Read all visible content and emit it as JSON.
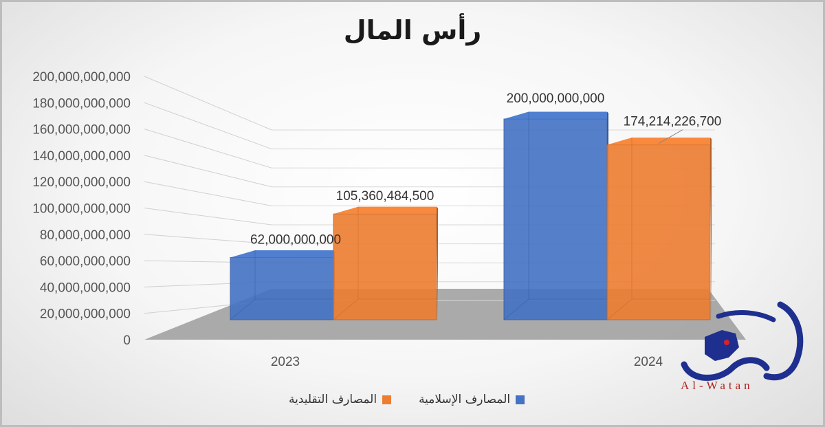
{
  "chart_data": {
    "type": "bar",
    "title": "رأس المال",
    "categories": [
      "2023",
      "2024"
    ],
    "series": [
      {
        "name": "المصارف الإسلامية",
        "color": "#4472c4",
        "values": [
          62000000000,
          200000000000
        ],
        "labels": [
          "62,000,000,000",
          "200,000,000,000"
        ]
      },
      {
        "name": "المصارف التقليدية",
        "color": "#ed7d31",
        "values": [
          105360484500,
          174214226700
        ],
        "labels": [
          "105,360,484,500",
          "174,214,226,700"
        ]
      }
    ],
    "ylim": [
      0,
      200000000000
    ],
    "yticks": [
      "0",
      "20,000,000,000",
      "40,000,000,000",
      "60,000,000,000",
      "80,000,000,000",
      "100,000,000,000",
      "120,000,000,000",
      "140,000,000,000",
      "160,000,000,000",
      "180,000,000,000",
      "200,000,000,000"
    ],
    "grid": true,
    "legend": "bottom"
  },
  "watermark": {
    "text": "Al-Watan",
    "color": "#b01e1e"
  }
}
